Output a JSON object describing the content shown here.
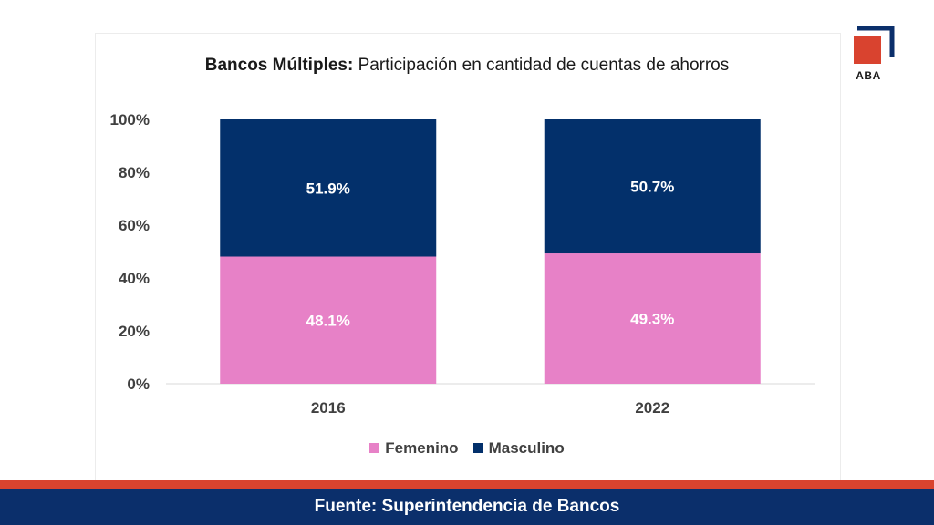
{
  "brand": {
    "logo_text": "ABA",
    "navy": "#0b2f6b",
    "red": "#d9432f"
  },
  "footer": {
    "source_text": "Fuente: Superintendencia de Bancos"
  },
  "chart_data": {
    "type": "bar",
    "stacked": true,
    "title_bold": "Bancos Múltiples:",
    "title_rest": "Participación en cantidad de cuentas de ahorros",
    "categories": [
      "2016",
      "2022"
    ],
    "series": [
      {
        "name": "Femenino",
        "values": [
          48.1,
          49.3
        ],
        "labels": [
          "48.1%",
          "49.3%"
        ],
        "color": "#e781c7"
      },
      {
        "name": "Masculino",
        "values": [
          51.9,
          50.7
        ],
        "labels": [
          "51.9%",
          "50.7%"
        ],
        "color": "#03306b"
      }
    ],
    "ylim": [
      0,
      100
    ],
    "yticks": [
      "0%",
      "20%",
      "40%",
      "60%",
      "80%",
      "100%"
    ],
    "grid": false,
    "legend_position": "bottom"
  }
}
